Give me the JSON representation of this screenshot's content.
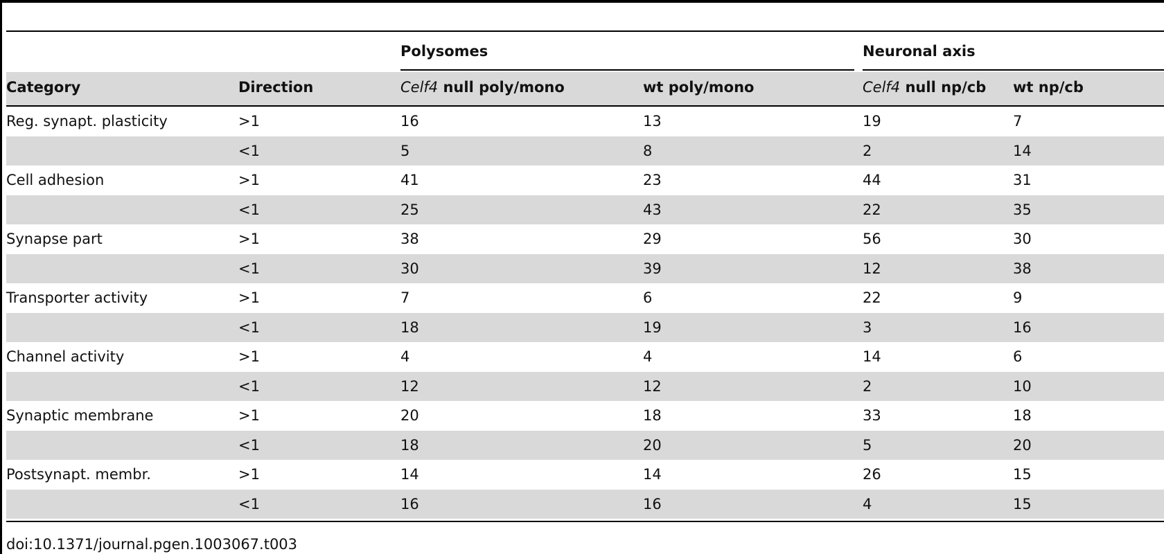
{
  "groups": {
    "polysomes": "Polysomes",
    "neuronal_axis": "Neuronal axis"
  },
  "headers": {
    "category": "Category",
    "direction": "Direction",
    "celf4_poly_gene": "Celf4",
    "celf4_poly_rest": " null poly/mono",
    "wt_poly": "wt poly/mono",
    "celf4_np_gene": "Celf4",
    "celf4_np_rest": " null np/cb",
    "wt_np": "wt np/cb"
  },
  "rows": [
    {
      "category": "Reg. synapt. plasticity",
      "direction": ">1",
      "null_poly": "16",
      "wt_poly": "13",
      "null_np": "19",
      "wt_np": "7"
    },
    {
      "category": "",
      "direction": "<1",
      "null_poly": "5",
      "wt_poly": "8",
      "null_np": "2",
      "wt_np": "14"
    },
    {
      "category": "Cell adhesion",
      "direction": ">1",
      "null_poly": "41",
      "wt_poly": "23",
      "null_np": "44",
      "wt_np": "31"
    },
    {
      "category": "",
      "direction": "<1",
      "null_poly": "25",
      "wt_poly": "43",
      "null_np": "22",
      "wt_np": "35"
    },
    {
      "category": "Synapse part",
      "direction": ">1",
      "null_poly": "38",
      "wt_poly": "29",
      "null_np": "56",
      "wt_np": "30"
    },
    {
      "category": "",
      "direction": "<1",
      "null_poly": "30",
      "wt_poly": "39",
      "null_np": "12",
      "wt_np": "38"
    },
    {
      "category": "Transporter activity",
      "direction": ">1",
      "null_poly": "7",
      "wt_poly": "6",
      "null_np": "22",
      "wt_np": "9"
    },
    {
      "category": "",
      "direction": "<1",
      "null_poly": "18",
      "wt_poly": "19",
      "null_np": "3",
      "wt_np": "16"
    },
    {
      "category": "Channel activity",
      "direction": ">1",
      "null_poly": "4",
      "wt_poly": "4",
      "null_np": "14",
      "wt_np": "6"
    },
    {
      "category": "",
      "direction": "<1",
      "null_poly": "12",
      "wt_poly": "12",
      "null_np": "2",
      "wt_np": "10"
    },
    {
      "category": "Synaptic membrane",
      "direction": ">1",
      "null_poly": "20",
      "wt_poly": "18",
      "null_np": "33",
      "wt_np": "18"
    },
    {
      "category": "",
      "direction": "<1",
      "null_poly": "18",
      "wt_poly": "20",
      "null_np": "5",
      "wt_np": "20"
    },
    {
      "category": "Postsynapt. membr.",
      "direction": ">1",
      "null_poly": "14",
      "wt_poly": "14",
      "null_np": "26",
      "wt_np": "15"
    },
    {
      "category": "",
      "direction": "<1",
      "null_poly": "16",
      "wt_poly": "16",
      "null_np": "4",
      "wt_np": "15"
    }
  ],
  "footer": {
    "doi": "doi:10.1371/journal.pgen.1003067.t003"
  }
}
